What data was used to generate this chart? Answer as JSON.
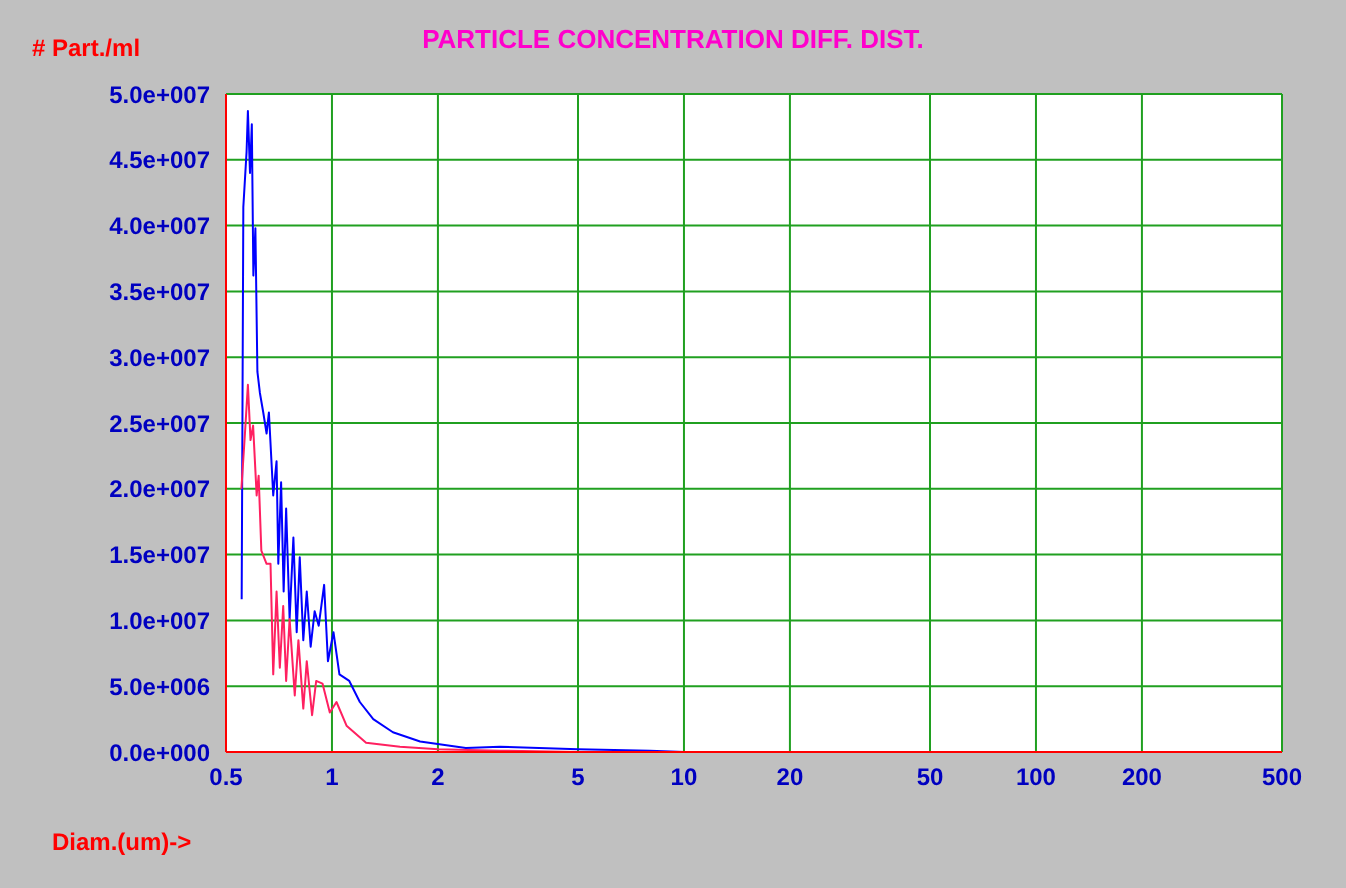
{
  "chart_data": {
    "type": "line",
    "title": "PARTICLE CONCENTRATION DIFF. DIST.",
    "xlabel": "Diam.(um)->",
    "ylabel": "# Part./ml",
    "log": "x",
    "grid": true,
    "marker": "none",
    "line_style": "solid",
    "xlim": [
      0.5,
      500
    ],
    "xticks": [
      0.5,
      1,
      2,
      5,
      10,
      20,
      50,
      100,
      200,
      500
    ],
    "ylim": [
      0,
      50000000
    ],
    "yticks": [
      {
        "value": 0,
        "label": "0.0e+000"
      },
      {
        "value": 5000000,
        "label": "5.0e+006"
      },
      {
        "value": 10000000,
        "label": "1.0e+007"
      },
      {
        "value": 15000000,
        "label": "1.5e+007"
      },
      {
        "value": 20000000,
        "label": "2.0e+007"
      },
      {
        "value": 25000000,
        "label": "2.5e+007"
      },
      {
        "value": 30000000,
        "label": "3.0e+007"
      },
      {
        "value": 35000000,
        "label": "3.5e+007"
      },
      {
        "value": 40000000,
        "label": "4.0e+007"
      },
      {
        "value": 45000000,
        "label": "4.5e+007"
      },
      {
        "value": 50000000,
        "label": "5.0e+007"
      }
    ],
    "series": [
      {
        "color": "#0000ff",
        "x": [
          0.554,
          0.56,
          0.572,
          0.577,
          0.585,
          0.592,
          0.598,
          0.606,
          0.614,
          0.624,
          0.638,
          0.652,
          0.662,
          0.681,
          0.696,
          0.704,
          0.717,
          0.729,
          0.741,
          0.758,
          0.777,
          0.794,
          0.81,
          0.829,
          0.848,
          0.87,
          0.893,
          0.917,
          0.95,
          0.974,
          1.01,
          1.05,
          1.12,
          1.2,
          1.31,
          1.49,
          1.78,
          2.4,
          3,
          5,
          8,
          10
        ],
        "values": [
          11600000,
          41400000,
          45600000,
          48700000,
          44000000,
          47700000,
          36200000,
          39800000,
          28900000,
          27300000,
          25800000,
          24200000,
          25800000,
          19500000,
          22100000,
          14300000,
          20500000,
          12200000,
          18500000,
          10100000,
          16300000,
          9100000,
          14800000,
          8500000,
          12200000,
          8000000,
          10700000,
          9600000,
          12700000,
          6900000,
          9100000,
          5900000,
          5400000,
          3800000,
          2500000,
          1500000,
          800000,
          300000,
          400000,
          200000,
          100000,
          0
        ]
      },
      {
        "color": "#ff2060",
        "x": [
          0.553,
          0.566,
          0.577,
          0.587,
          0.597,
          0.611,
          0.619,
          0.63,
          0.652,
          0.669,
          0.681,
          0.696,
          0.711,
          0.727,
          0.741,
          0.758,
          0.784,
          0.803,
          0.829,
          0.848,
          0.878,
          0.902,
          0.94,
          0.986,
          1.03,
          1.1,
          1.25,
          1.56,
          2,
          3,
          5,
          8
        ],
        "values": [
          20000000,
          24200000,
          27900000,
          23700000,
          24800000,
          19500000,
          21000000,
          15300000,
          14300000,
          14300000,
          5900000,
          12200000,
          6400000,
          11100000,
          5400000,
          10100000,
          4300000,
          8500000,
          3300000,
          6900000,
          2800000,
          5400000,
          5200000,
          3000000,
          3800000,
          2000000,
          700000,
          400000,
          200000,
          100000,
          0,
          0
        ]
      }
    ]
  }
}
